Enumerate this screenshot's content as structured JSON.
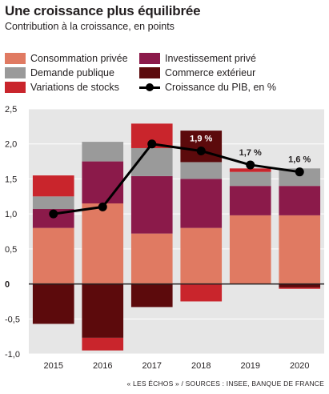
{
  "header": {
    "title": "Une croissance plus équilibrée",
    "subtitle": "Contribution à la croissance, en points"
  },
  "legend": [
    {
      "key": "consommation",
      "label": "Consommation privée",
      "color": "#e07a62"
    },
    {
      "key": "investissement",
      "label": "Investissement privé",
      "color": "#8b1a4a"
    },
    {
      "key": "demande",
      "label": "Demande publique",
      "color": "#9a9a9a"
    },
    {
      "key": "commerce",
      "label": "Commerce extérieur",
      "color": "#5c0a0c"
    },
    {
      "key": "stocks",
      "label": "Variations de stocks",
      "color": "#c9252c"
    },
    {
      "key": "pib",
      "label": "Croissance du PIB, en %",
      "color": "#000000"
    }
  ],
  "source": "« LES ÉCHOS » / SOURCES : INSEE, BANQUE DE FRANCE",
  "chart_data": {
    "type": "bar",
    "stacked": true,
    "categories": [
      "2015",
      "2016",
      "2017",
      "2018",
      "2019",
      "2020"
    ],
    "series": [
      {
        "name": "Consommation privée",
        "color": "#e07a62",
        "values": [
          0.8,
          1.15,
          0.72,
          0.8,
          0.98,
          0.98
        ]
      },
      {
        "name": "Investissement privé",
        "color": "#8b1a4a",
        "values": [
          0.27,
          0.6,
          0.82,
          0.7,
          0.42,
          0.42
        ]
      },
      {
        "name": "Demande publique",
        "color": "#9a9a9a",
        "values": [
          0.18,
          0.28,
          0.4,
          0.24,
          0.2,
          0.25
        ]
      },
      {
        "name": "Commerce extérieur",
        "color": "#5c0a0c",
        "values": [
          -0.57,
          -0.77,
          -0.33,
          0.45,
          0.0,
          -0.05
        ]
      },
      {
        "name": "Variations de stocks",
        "color": "#c9252c",
        "values": [
          0.3,
          -0.18,
          0.35,
          -0.25,
          0.05,
          -0.02
        ]
      }
    ],
    "line": {
      "name": "Croissance du PIB, en %",
      "values": [
        1.0,
        1.1,
        2.0,
        1.9,
        1.7,
        1.6
      ]
    },
    "data_labels": [
      "",
      "",
      "",
      "1,9 %",
      "1,7 %",
      "1,6 %"
    ],
    "yticks": [
      "2,5",
      "2,0",
      "1,5",
      "1,0",
      "0,5",
      "0",
      "-0,5",
      "-1,0"
    ],
    "ylim": [
      -1.0,
      2.5
    ],
    "grid": true,
    "background": "#e6e6e6"
  }
}
